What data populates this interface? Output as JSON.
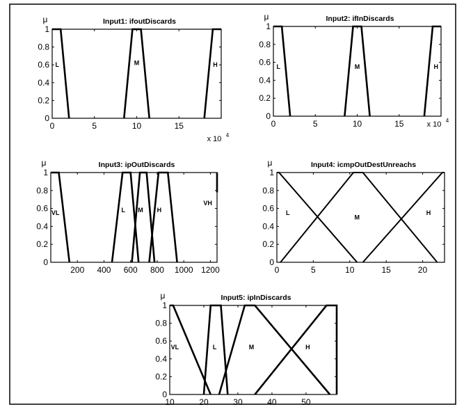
{
  "chart_data": [
    {
      "type": "line",
      "title": "Input1: ifoutDiscards",
      "ylabel": "μ",
      "xlim": [
        0,
        200000
      ],
      "ylim": [
        0,
        1
      ],
      "xticks": [
        0,
        50000,
        100000,
        150000
      ],
      "xticklabels": [
        "0",
        "5",
        "10",
        "15"
      ],
      "multiplier": "x 10",
      "multiplier_exp": "4",
      "yticks": [
        0,
        0.2,
        0.4,
        0.6,
        0.8,
        1
      ],
      "yticklabels": [
        "0",
        "0.2",
        "0.4",
        "0.6",
        "0.8",
        "1"
      ],
      "grid": false,
      "series": [
        {
          "name": "L",
          "x": [
            0,
            10000,
            20000
          ],
          "y": [
            1,
            1,
            0
          ],
          "label_at": [
            6000,
            0.6
          ]
        },
        {
          "name": "M",
          "x": [
            85000,
            95000,
            105000,
            115000
          ],
          "y": [
            0,
            1,
            1,
            0
          ],
          "label_at": [
            100000,
            0.62
          ]
        },
        {
          "name": "H",
          "x": [
            180000,
            190000,
            200000
          ],
          "y": [
            0,
            1,
            1
          ],
          "label_at": [
            193000,
            0.6
          ]
        }
      ]
    },
    {
      "type": "line",
      "title": "Input2: ifInDiscards",
      "ylabel": "μ",
      "xlim": [
        0,
        200000
      ],
      "ylim": [
        0,
        1
      ],
      "xticks": [
        0,
        50000,
        100000,
        150000
      ],
      "xticklabels": [
        "0",
        "5",
        "10",
        "15"
      ],
      "multiplier": "x 10",
      "multiplier_exp": "4",
      "yticks": [
        0,
        0.2,
        0.4,
        0.6,
        0.8,
        1
      ],
      "yticklabels": [
        "0",
        "0.2",
        "0.4",
        "0.6",
        "0.8",
        "1"
      ],
      "grid": false,
      "series": [
        {
          "name": "L",
          "x": [
            0,
            10000,
            20000
          ],
          "y": [
            1,
            1,
            0
          ],
          "label_at": [
            6000,
            0.55
          ]
        },
        {
          "name": "M",
          "x": [
            85000,
            95000,
            105000,
            115000
          ],
          "y": [
            0,
            1,
            1,
            0
          ],
          "label_at": [
            100000,
            0.55
          ]
        },
        {
          "name": "H",
          "x": [
            180000,
            190000,
            200000
          ],
          "y": [
            0,
            1,
            1
          ],
          "label_at": [
            194000,
            0.55
          ]
        }
      ]
    },
    {
      "type": "line",
      "title": "Input3: ipOutDiscards",
      "ylabel": "μ",
      "xlim": [
        0,
        1250
      ],
      "ylim": [
        0,
        1
      ],
      "xticks": [
        200,
        400,
        600,
        800,
        1000,
        1200
      ],
      "xticklabels": [
        "200",
        "400",
        "600",
        "800",
        "1000",
        "1200"
      ],
      "yticks": [
        0,
        0.2,
        0.4,
        0.6,
        0.8,
        1
      ],
      "yticklabels": [
        "0",
        "0.2",
        "0.4",
        "0.6",
        "0.8",
        "1"
      ],
      "grid": false,
      "series": [
        {
          "name": "VL",
          "x": [
            0,
            60,
            140
          ],
          "y": [
            1,
            1,
            0
          ],
          "label_at": [
            35,
            0.55
          ]
        },
        {
          "name": "L",
          "x": [
            460,
            540,
            600,
            660
          ],
          "y": [
            0,
            1,
            1,
            0
          ],
          "label_at": [
            545,
            0.58
          ]
        },
        {
          "name": "M",
          "x": [
            610,
            670,
            720,
            780
          ],
          "y": [
            0,
            1,
            1,
            0
          ],
          "label_at": [
            675,
            0.58
          ]
        },
        {
          "name": "H",
          "x": [
            740,
            810,
            880,
            950
          ],
          "y": [
            0,
            1,
            1,
            0
          ],
          "label_at": [
            815,
            0.58
          ]
        },
        {
          "name": "VH",
          "x": [
            1250,
            1250
          ],
          "y": [
            0.78,
            1
          ],
          "label_at": [
            1180,
            0.66
          ]
        }
      ]
    },
    {
      "type": "line",
      "title": "Input4: icmpOutDestUnreachs",
      "ylabel": "μ",
      "xlim": [
        0,
        23
      ],
      "ylim": [
        0,
        1
      ],
      "xticks": [
        0,
        5,
        10,
        15,
        20
      ],
      "xticklabels": [
        "0",
        "5",
        "10",
        "15",
        "20"
      ],
      "yticks": [
        0,
        0.2,
        0.4,
        0.6,
        0.8,
        1
      ],
      "yticklabels": [
        "0",
        "0.2",
        "0.4",
        "0.6",
        "0.8",
        "1"
      ],
      "grid": false,
      "series": [
        {
          "name": "L",
          "x": [
            0,
            0.3,
            11
          ],
          "y": [
            1,
            1,
            0
          ],
          "label_at": [
            1.5,
            0.55
          ]
        },
        {
          "name": "M",
          "x": [
            0.5,
            10.5,
            11.8,
            22
          ],
          "y": [
            0,
            1,
            1,
            0
          ],
          "label_at": [
            11,
            0.5
          ]
        },
        {
          "name": "H",
          "x": [
            11.8,
            22.7,
            23
          ],
          "y": [
            0,
            1,
            1
          ],
          "label_at": [
            20.8,
            0.55
          ]
        }
      ]
    },
    {
      "type": "line",
      "title": "Input5: ipInDiscards",
      "ylabel": "μ",
      "xlim": [
        10,
        59
      ],
      "ylim": [
        0,
        1
      ],
      "xticks": [
        10,
        20,
        30,
        40,
        50
      ],
      "xticklabels": [
        "10",
        "20",
        "30",
        "40",
        "50"
      ],
      "yticks": [
        0,
        0.2,
        0.4,
        0.6,
        0.8,
        1
      ],
      "yticklabels": [
        "0",
        "0.2",
        "0.4",
        "0.6",
        "0.8",
        "1"
      ],
      "grid": false,
      "series": [
        {
          "name": "VL",
          "x": [
            10,
            11,
            22
          ],
          "y": [
            1,
            1,
            0
          ],
          "label_at": [
            11.5,
            0.53
          ]
        },
        {
          "name": "L",
          "x": [
            20,
            22,
            25,
            27
          ],
          "y": [
            0,
            1,
            1,
            0
          ],
          "label_at": [
            23.2,
            0.53
          ]
        },
        {
          "name": "M",
          "x": [
            24.5,
            32,
            35,
            57
          ],
          "y": [
            0,
            1,
            1,
            0
          ],
          "label_at": [
            34,
            0.53
          ]
        },
        {
          "name": "H",
          "x": [
            35,
            56,
            59,
            59
          ],
          "y": [
            0,
            1,
            1,
            0
          ],
          "label_at": [
            50.5,
            0.53
          ]
        }
      ]
    }
  ]
}
